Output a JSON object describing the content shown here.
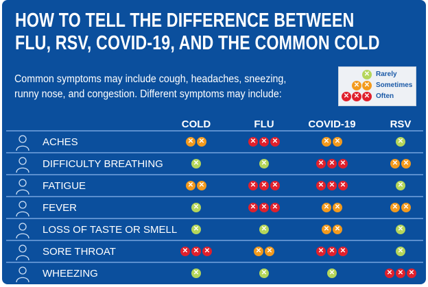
{
  "title": {
    "line1": "HOW TO TELL THE DIFFERENCE BETWEEN",
    "line2": "FLU, RSV, COVID-19, AND THE COMMON COLD"
  },
  "intro": {
    "line1": "Common symptoms may include cough, headaches, sneezing,",
    "line2": "runny nose, and congestion. Different symptoms may include:"
  },
  "legend": [
    {
      "level": 1,
      "label": "Rarely"
    },
    {
      "level": 2,
      "label": "Sometimes"
    },
    {
      "level": 3,
      "label": "Often"
    }
  ],
  "colors": {
    "background": "#0b4f9d",
    "rarely": "#b5d65a",
    "sometimes": "#f39a1d",
    "often": "#e0202c"
  },
  "columns": [
    "COLD",
    "FLU",
    "COVID-19",
    "RSV"
  ],
  "rows": [
    {
      "label": "ACHES",
      "icon": "aches-icon",
      "levels": [
        2,
        3,
        2,
        1
      ]
    },
    {
      "label": "DIFFICULTY BREATHING",
      "icon": "breathing-icon",
      "levels": [
        1,
        1,
        3,
        2
      ]
    },
    {
      "label": "FATIGUE",
      "icon": "fatigue-icon",
      "levels": [
        2,
        3,
        3,
        1
      ]
    },
    {
      "label": "FEVER",
      "icon": "fever-icon",
      "levels": [
        1,
        3,
        2,
        2
      ]
    },
    {
      "label": "LOSS OF TASTE OR SMELL",
      "icon": "taste-smell-icon",
      "levels": [
        1,
        1,
        2,
        1
      ]
    },
    {
      "label": "SORE THROAT",
      "icon": "sore-throat-icon",
      "levels": [
        3,
        2,
        3,
        1
      ]
    },
    {
      "label": "WHEEZING",
      "icon": "lungs-icon",
      "levels": [
        1,
        1,
        1,
        3
      ]
    }
  ]
}
